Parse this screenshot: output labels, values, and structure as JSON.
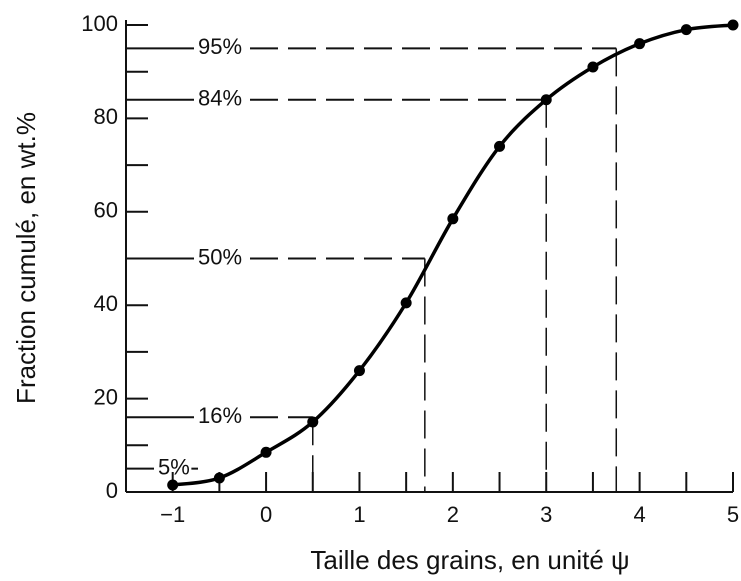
{
  "chart_data": {
    "type": "line",
    "xlabel": "Taille des grains, en unité ψ",
    "ylabel": "Fraction cumulé, en wt.%",
    "xlim": [
      -1.5,
      5
    ],
    "ylim": [
      0,
      100
    ],
    "xticks": [
      {
        "value": -1,
        "label": "−1"
      },
      0,
      1,
      2,
      3,
      4,
      5
    ],
    "yticks": [
      0,
      20,
      40,
      60,
      80,
      100
    ],
    "xminor": [
      -0.5,
      0.5,
      1.5,
      2.5,
      3.5,
      4.5
    ],
    "yminor": [
      10,
      30,
      50,
      70,
      90
    ],
    "series": [
      {
        "color": "#000000",
        "x": [
          -1,
          -0.5,
          0,
          0.5,
          1,
          1.5,
          2,
          2.5,
          3,
          3.5,
          4,
          4.5,
          5
        ],
        "values": [
          1.5,
          3,
          8.5,
          15,
          26,
          40.5,
          58.5,
          74,
          84,
          91,
          96,
          99,
          100
        ]
      }
    ],
    "annotations": [
      {
        "label": "5%",
        "value": 5,
        "x": -0.8
      },
      {
        "label": "16%",
        "value": 16,
        "x": 0.5
      },
      {
        "label": "50%",
        "value": 50,
        "x": 1.7
      },
      {
        "label": "84%",
        "value": 84,
        "x": 3
      },
      {
        "label": "95%",
        "value": 95,
        "x": 3.75
      }
    ]
  }
}
